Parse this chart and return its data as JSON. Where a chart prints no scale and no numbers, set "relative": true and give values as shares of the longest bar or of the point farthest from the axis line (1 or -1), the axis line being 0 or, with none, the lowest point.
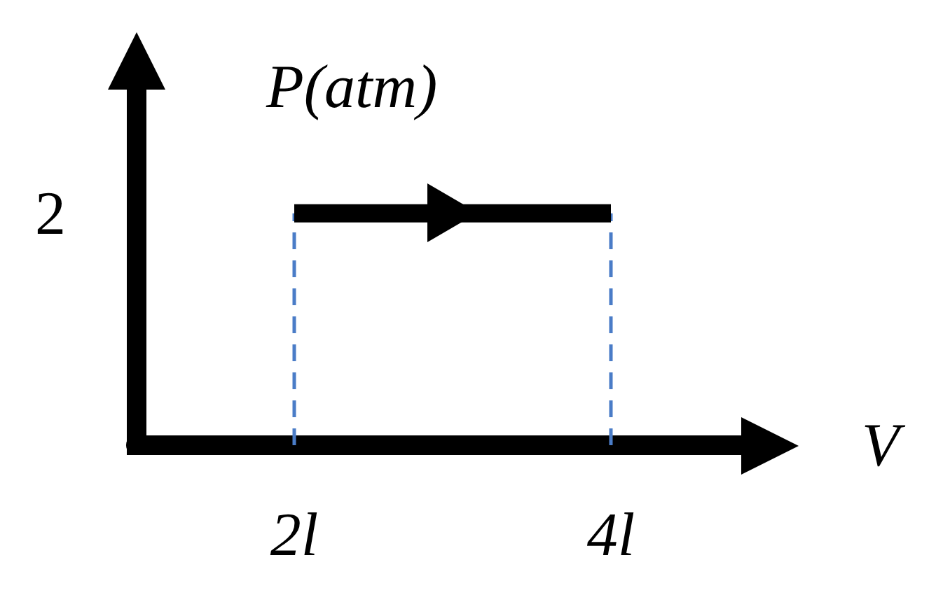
{
  "chart_data": {
    "type": "line",
    "xlabel": "V",
    "ylabel": "P(atm)",
    "categories": [
      "2l",
      "4l"
    ],
    "relative": true,
    "series": [
      {
        "color": "#000000",
        "values": [
          1,
          1
        ]
      },
      {
        "type": "line",
        "x": [
          "2l",
          "2l"
        ],
        "values": [
          0,
          1
        ],
        "color": "#4a7cc7",
        "line_style": "dashed"
      },
      {
        "type": "line",
        "x": [
          "4l",
          "4l"
        ],
        "values": [
          0,
          1
        ],
        "color": "#4a7cc7",
        "line_style": "dashed"
      }
    ],
    "annotations": [
      "2"
    ],
    "marker": "none"
  }
}
